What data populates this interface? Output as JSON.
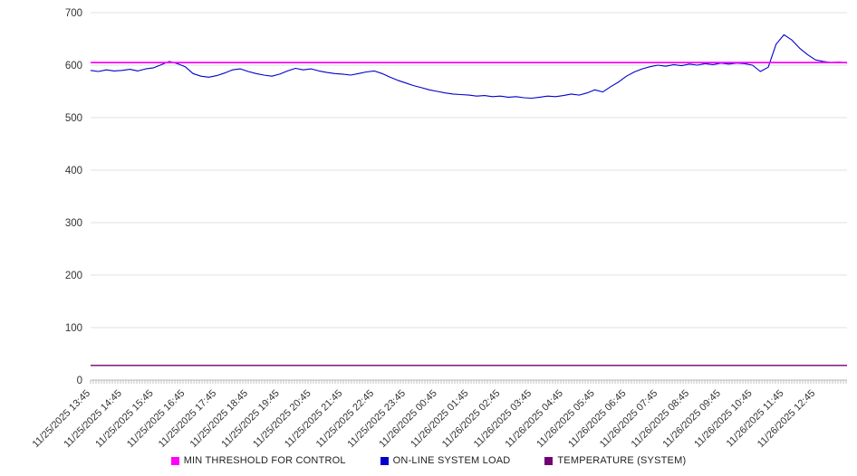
{
  "chart_data": {
    "type": "line",
    "title": "",
    "xlabel": "",
    "ylabel": "",
    "ylim": [
      0,
      700
    ],
    "yticks": [
      0,
      100,
      200,
      300,
      400,
      500,
      600,
      700
    ],
    "grid": "horizontal",
    "legend_position": "bottom",
    "axis_color": "#bbbbbb",
    "grid_color": "#e0e0e0",
    "tick_label_color": "#333333",
    "x_labels": [
      "11/25/2025 13:45",
      "11/25/2025 14:45",
      "11/25/2025 15:45",
      "11/25/2025 16:45",
      "11/25/2025 17:45",
      "11/25/2025 18:45",
      "11/25/2025 19:45",
      "11/25/2025 20:45",
      "11/25/2025 21:45",
      "11/25/2025 22:45",
      "11/25/2025 23:45",
      "11/26/2025 00:45",
      "11/26/2025 01:45",
      "11/26/2025 02:45",
      "11/26/2025 03:45",
      "11/26/2025 04:45",
      "11/26/2025 05:45",
      "11/26/2025 06:45",
      "11/26/2025 07:45",
      "11/26/2025 08:45",
      "11/26/2025 09:45",
      "11/26/2025 10:45",
      "11/26/2025 11:45",
      "11/26/2025 12:45"
    ],
    "series": [
      {
        "name": "MIN THRESHOLD FOR CONTROL",
        "color": "#ff00ff",
        "constant": 605,
        "width": 1.8,
        "z": 2
      },
      {
        "name": "ON-LINE SYSTEM LOAD",
        "color": "#0000cc",
        "width": 1.1,
        "z": 1,
        "values": [
          590,
          588,
          591,
          589,
          590,
          592,
          589,
          593,
          595,
          601,
          607,
          603,
          597,
          584,
          579,
          577,
          580,
          585,
          591,
          593,
          588,
          584,
          581,
          579,
          583,
          589,
          594,
          591,
          593,
          589,
          586,
          584,
          583,
          581,
          584,
          587,
          589,
          584,
          577,
          571,
          566,
          561,
          557,
          553,
          550,
          547,
          545,
          544,
          543,
          541,
          542,
          540,
          541,
          539,
          540,
          538,
          537,
          539,
          541,
          540,
          542,
          545,
          543,
          547,
          553,
          549,
          559,
          568,
          579,
          587,
          593,
          597,
          600,
          598,
          601,
          599,
          602,
          600,
          603,
          601,
          604,
          602,
          604,
          603,
          600,
          588,
          596,
          640,
          658,
          648,
          632,
          620,
          610,
          607,
          605,
          606,
          604
        ]
      },
      {
        "name": "TEMPERATURE (SYSTEM)",
        "color": "#730073",
        "constant": 28,
        "width": 1.4,
        "z": 0
      }
    ]
  }
}
